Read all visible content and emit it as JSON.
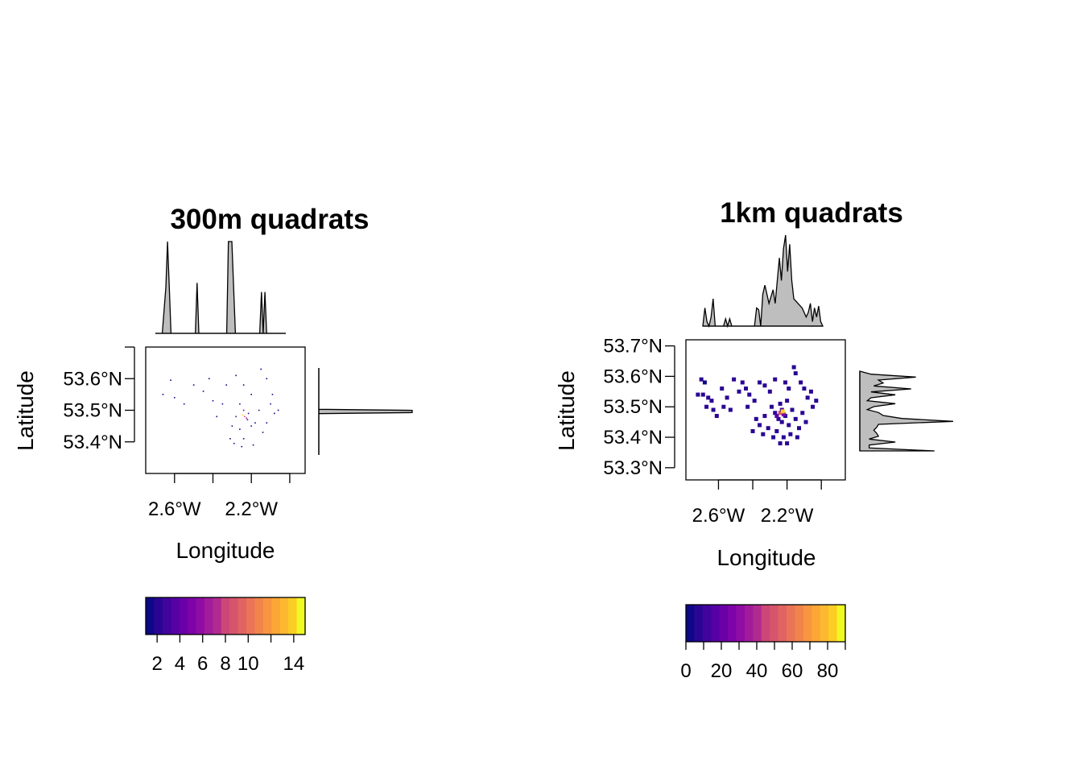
{
  "chart_data": [
    {
      "type": "heatmap",
      "title": "300m quadrats",
      "xlabel": "Longitude",
      "ylabel": "Latitude",
      "x_ticks": [
        "2.6°W",
        "2.2°W"
      ],
      "x_tick_values": [
        -2.6,
        -2.2
      ],
      "x_minor_ticks": [
        -2.4,
        -2.0
      ],
      "xlim": [
        -2.75,
        -1.92
      ],
      "y_ticks": [
        "53.6°N",
        "53.5°N",
        "53.4°N"
      ],
      "y_tick_values": [
        53.6,
        53.5,
        53.4
      ],
      "y_minor_ticks": [
        53.7
      ],
      "ylim": [
        53.3,
        53.7
      ],
      "colorbar": {
        "palette": "plasma",
        "min": 1,
        "max": 15,
        "tick_labels": [
          "2",
          "4",
          "6",
          "8",
          "10",
          "14"
        ],
        "tick_values": [
          2,
          4,
          6,
          8,
          10,
          14
        ],
        "minor_ticks": [
          12
        ]
      },
      "cells": [
        [
          -2.62,
          53.595,
          1
        ],
        [
          -2.66,
          53.55,
          1
        ],
        [
          -2.6,
          53.54,
          2
        ],
        [
          -2.55,
          53.52,
          1
        ],
        [
          -2.5,
          53.58,
          1
        ],
        [
          -2.45,
          53.56,
          1
        ],
        [
          -2.42,
          53.6,
          1
        ],
        [
          -2.4,
          53.53,
          1
        ],
        [
          -2.33,
          53.58,
          1
        ],
        [
          -2.28,
          53.61,
          1
        ],
        [
          -2.24,
          53.58,
          1
        ],
        [
          -2.2,
          53.55,
          1
        ],
        [
          -2.15,
          53.63,
          1
        ],
        [
          -2.12,
          53.6,
          1
        ],
        [
          -2.1,
          53.52,
          2
        ],
        [
          -2.08,
          53.49,
          1
        ],
        [
          -2.3,
          53.45,
          2
        ],
        [
          -2.26,
          53.44,
          1
        ],
        [
          -2.22,
          53.47,
          3
        ],
        [
          -2.2,
          53.45,
          2
        ],
        [
          -2.18,
          53.46,
          1
        ],
        [
          -2.16,
          53.5,
          2
        ],
        [
          -2.24,
          53.5,
          4
        ],
        [
          -2.26,
          53.52,
          2
        ],
        [
          -2.28,
          53.48,
          3
        ],
        [
          -2.31,
          53.41,
          1
        ],
        [
          -2.24,
          53.41,
          1
        ],
        [
          -2.19,
          53.39,
          1
        ],
        [
          -2.14,
          53.43,
          1
        ],
        [
          -2.12,
          53.46,
          1
        ],
        [
          -2.35,
          53.52,
          1
        ],
        [
          -2.38,
          53.48,
          1
        ],
        [
          -2.09,
          53.55,
          1
        ],
        [
          -2.06,
          53.5,
          1
        ],
        [
          -2.25,
          53.385,
          1
        ],
        [
          -2.29,
          53.395,
          1
        ],
        [
          -2.235,
          53.48,
          8
        ],
        [
          -2.245,
          53.485,
          14
        ],
        [
          -2.225,
          53.475,
          6
        ],
        [
          -2.215,
          53.49,
          2
        ]
      ],
      "x_marginal": {
        "x": [
          -2.7,
          -2.66,
          -2.64,
          -2.63,
          -2.62,
          -2.61,
          -2.6,
          -2.5,
          -2.47,
          -2.46,
          -2.45,
          -2.3,
          -2.29,
          -2.28,
          -2.26,
          -2.24,
          -2.23,
          -2.1,
          -2.09,
          -2.08,
          -2.07,
          -2.06,
          -2.05,
          -1.95
        ],
        "density": [
          0,
          0,
          0.5,
          1.0,
          0.5,
          0,
          0,
          0,
          0,
          0.55,
          0,
          0,
          0,
          1.0,
          1.0,
          0,
          0,
          0,
          0.45,
          0,
          0.45,
          0,
          0,
          0
        ]
      },
      "y_marginal": {
        "y": [
          53.3,
          53.49,
          53.495,
          53.5,
          53.505,
          53.51,
          53.7
        ],
        "density": [
          0,
          0,
          1.0,
          1.0,
          1.0,
          0,
          0
        ]
      }
    },
    {
      "type": "heatmap",
      "title": "1km quadrats",
      "xlabel": "Longitude",
      "ylabel": "Latitude",
      "x_ticks": [
        "2.6°W",
        "2.2°W"
      ],
      "x_tick_values": [
        -2.6,
        -2.2
      ],
      "x_minor_ticks": [
        -2.4,
        -2.0
      ],
      "xlim": [
        -2.79,
        -1.86
      ],
      "y_ticks": [
        "53.7°N",
        "53.6°N",
        "53.5°N",
        "53.4°N",
        "53.3°N"
      ],
      "y_tick_values": [
        53.7,
        53.6,
        53.5,
        53.4,
        53.3
      ],
      "ylim": [
        53.26,
        53.72
      ],
      "colorbar": {
        "palette": "plasma",
        "min": 0,
        "max": 90,
        "tick_labels": [
          "0",
          "20",
          "40",
          "60",
          "80"
        ],
        "tick_values": [
          0,
          20,
          40,
          60,
          80
        ],
        "minor_ticks": [
          10,
          30,
          50,
          70,
          90
        ]
      },
      "cells": [
        [
          -2.7,
          53.59,
          6
        ],
        [
          -2.68,
          53.58,
          4
        ],
        [
          -2.72,
          53.54,
          6
        ],
        [
          -2.69,
          53.54,
          6
        ],
        [
          -2.66,
          53.53,
          6
        ],
        [
          -2.64,
          53.52,
          6
        ],
        [
          -2.67,
          53.5,
          5
        ],
        [
          -2.63,
          53.49,
          6
        ],
        [
          -2.61,
          53.47,
          5
        ],
        [
          -2.58,
          53.56,
          6
        ],
        [
          -2.55,
          53.53,
          5
        ],
        [
          -2.57,
          53.5,
          6
        ],
        [
          -2.53,
          53.49,
          5
        ],
        [
          -2.51,
          53.59,
          6
        ],
        [
          -2.46,
          53.58,
          6
        ],
        [
          -2.44,
          53.56,
          6
        ],
        [
          -2.48,
          53.55,
          6
        ],
        [
          -2.42,
          53.54,
          5
        ],
        [
          -2.39,
          53.52,
          6
        ],
        [
          -2.43,
          53.5,
          6
        ],
        [
          -2.36,
          53.58,
          5
        ],
        [
          -2.33,
          53.57,
          6
        ],
        [
          -2.3,
          53.55,
          5
        ],
        [
          -2.27,
          53.59,
          6
        ],
        [
          -2.21,
          53.58,
          6
        ],
        [
          -2.19,
          53.56,
          5
        ],
        [
          -2.16,
          53.63,
          6
        ],
        [
          -2.15,
          53.61,
          6
        ],
        [
          -2.12,
          53.58,
          5
        ],
        [
          -2.1,
          53.56,
          6
        ],
        [
          -2.08,
          53.53,
          6
        ],
        [
          -2.06,
          53.55,
          5
        ],
        [
          -2.05,
          53.5,
          6
        ],
        [
          -2.03,
          53.52,
          5
        ],
        [
          -2.38,
          53.46,
          6
        ],
        [
          -2.36,
          53.44,
          6
        ],
        [
          -2.33,
          53.47,
          6
        ],
        [
          -2.31,
          53.43,
          5
        ],
        [
          -2.29,
          53.5,
          6
        ],
        [
          -2.27,
          53.48,
          6
        ],
        [
          -2.25,
          53.46,
          7
        ],
        [
          -2.23,
          53.45,
          8
        ],
        [
          -2.21,
          53.47,
          7
        ],
        [
          -2.19,
          53.44,
          6
        ],
        [
          -2.17,
          53.49,
          6
        ],
        [
          -2.15,
          53.46,
          6
        ],
        [
          -2.13,
          53.43,
          5
        ],
        [
          -2.11,
          53.48,
          6
        ],
        [
          -2.09,
          53.45,
          5
        ],
        [
          -2.24,
          53.51,
          7
        ],
        [
          -2.2,
          53.52,
          6
        ],
        [
          -2.26,
          53.42,
          6
        ],
        [
          -2.22,
          53.4,
          6
        ],
        [
          -2.18,
          53.41,
          5
        ],
        [
          -2.28,
          53.4,
          5
        ],
        [
          -2.14,
          53.4,
          5
        ],
        [
          -2.34,
          53.41,
          5
        ],
        [
          -2.4,
          53.42,
          5
        ],
        [
          -2.24,
          53.38,
          5
        ],
        [
          -2.2,
          53.38,
          5
        ],
        [
          -2.24,
          53.48,
          50
        ],
        [
          -2.22,
          53.475,
          25
        ],
        [
          -2.26,
          53.47,
          15
        ],
        [
          -2.23,
          53.49,
          12
        ],
        [
          -2.225,
          53.485,
          85
        ]
      ],
      "x_marginal": {
        "x": [
          -2.7,
          -2.69,
          -2.68,
          -2.67,
          -2.66,
          -2.65,
          -2.64,
          -2.6,
          -2.59,
          -2.58,
          -2.57,
          -2.56,
          -2.45,
          -2.44,
          -2.43,
          -2.42,
          -2.41,
          -2.4,
          -2.38,
          -2.36,
          -2.35,
          -2.34,
          -2.33,
          -2.32,
          -2.31,
          -2.3,
          -2.29,
          -2.28,
          -2.27,
          -2.26,
          -2.24,
          -2.22,
          -2.2,
          -2.19,
          -2.18,
          -2.17,
          -2.16,
          -2.15,
          -2.14,
          -2.13,
          -2.12
        ],
        "density": [
          0,
          0.2,
          0.05,
          0,
          0.1,
          0.3,
          0,
          0,
          0.08,
          0,
          0.08,
          0,
          0,
          0.2,
          0.18,
          0,
          0.35,
          0.45,
          0.25,
          0.4,
          0.25,
          0.5,
          0.75,
          0.5,
          0.85,
          1.0,
          0.6,
          0.9,
          0.5,
          0.3,
          0.25,
          0.2,
          0.1,
          0.15,
          0.25,
          0.05,
          0.2,
          0.1,
          0.22,
          0.05,
          0
        ]
      },
      "y_marginal": {
        "y": [
          53.37,
          53.38,
          53.39,
          53.4,
          53.41,
          53.42,
          53.43,
          53.44,
          53.45,
          53.46,
          53.47,
          53.48,
          53.49,
          53.5,
          53.51,
          53.52,
          53.53,
          53.54,
          53.55,
          53.56,
          53.57,
          53.58,
          53.59,
          53.6,
          53.61,
          53.62,
          53.63,
          53.64
        ],
        "density": [
          0.8,
          0.1,
          0.1,
          0.38,
          0.1,
          0.2,
          0.18,
          0.15,
          0.18,
          0.2,
          1.0,
          0.45,
          0.25,
          0.2,
          0.08,
          0.15,
          0.38,
          0.08,
          0.12,
          0.38,
          0.12,
          0.55,
          0.15,
          0.25,
          0.2,
          0.6,
          0.12,
          0
        ]
      }
    }
  ]
}
